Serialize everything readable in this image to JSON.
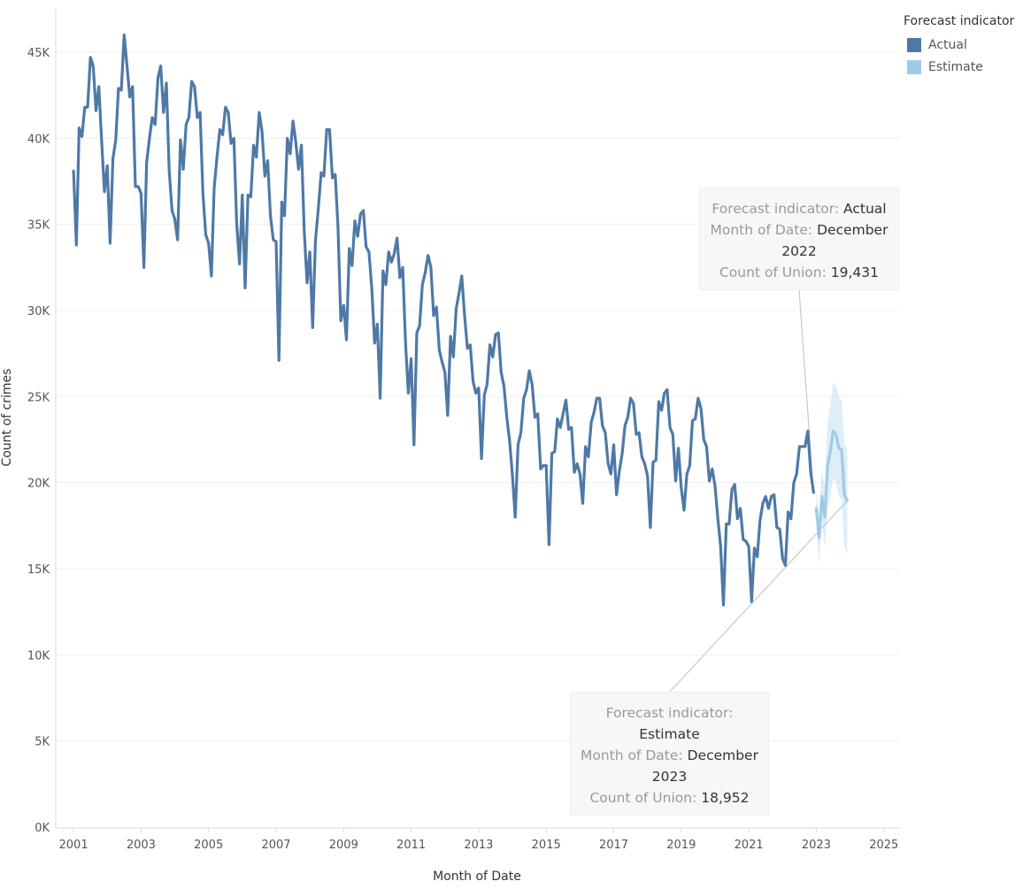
{
  "chart_data": {
    "type": "line",
    "xlabel": "Month of Date",
    "ylabel": "Count of crimes",
    "xlim": [
      2000.5,
      2025.4
    ],
    "ylim": [
      0,
      47000
    ],
    "x_ticks": [
      "2001",
      "2003",
      "2005",
      "2007",
      "2009",
      "2011",
      "2013",
      "2015",
      "2017",
      "2019",
      "2021",
      "2023",
      "2025"
    ],
    "y_ticks": [
      "0K",
      "5K",
      "10K",
      "15K",
      "20K",
      "25K",
      "30K",
      "35K",
      "40K",
      "45K"
    ],
    "grid": "horizontal",
    "legend": {
      "title": "Forecast indicator",
      "position": "top-right",
      "entries": [
        {
          "name": "Actual",
          "color": "#4e79a7"
        },
        {
          "name": "Estimate",
          "color": "#a0cbe8"
        }
      ]
    },
    "series": [
      {
        "name": "Actual",
        "color": "#4e79a7",
        "x_start": "2001-01",
        "x_step": "month",
        "values": [
          38100,
          33800,
          40600,
          40100,
          41800,
          41800,
          44700,
          44200,
          41600,
          43000,
          39800,
          36900,
          38400,
          33900,
          38800,
          39900,
          42900,
          42800,
          46000,
          44200,
          42400,
          43000,
          37200,
          37200,
          36800,
          32500,
          38600,
          40000,
          41200,
          40800,
          43500,
          44200,
          41500,
          43200,
          38100,
          35800,
          35300,
          34100,
          39900,
          38200,
          40800,
          41200,
          43300,
          43000,
          41200,
          41500,
          36800,
          34400,
          33900,
          32000,
          37100,
          38900,
          40500,
          40200,
          41800,
          41500,
          39700,
          40000,
          35000,
          32700,
          36700,
          31300,
          36700,
          36600,
          39600,
          38900,
          41500,
          40400,
          37800,
          38700,
          35500,
          34100,
          34000,
          27100,
          36300,
          35500,
          40000,
          39100,
          41000,
          39800,
          38200,
          39600,
          34600,
          31600,
          33400,
          29000,
          34100,
          35900,
          38000,
          37800,
          40500,
          40500,
          37700,
          37900,
          34900,
          29400,
          30300,
          28300,
          33600,
          32600,
          35200,
          34300,
          35600,
          35800,
          33700,
          33400,
          31300,
          28100,
          29200,
          24900,
          32300,
          31500,
          33400,
          32800,
          33300,
          34200,
          31900,
          32500,
          28200,
          25200,
          27200,
          22200,
          28700,
          29100,
          31500,
          32200,
          33200,
          32500,
          29700,
          30200,
          27700,
          27000,
          26400,
          23900,
          28500,
          27300,
          30100,
          31000,
          32000,
          29700,
          27800,
          28000,
          25900,
          25200,
          25500,
          21400,
          25100,
          25700,
          28000,
          27300,
          28600,
          28700,
          26400,
          25600,
          23800,
          22400,
          20400,
          18000,
          22200,
          22900,
          24900,
          25400,
          26500,
          25700,
          23800,
          24000,
          20800,
          21000,
          21000,
          16400,
          21700,
          21800,
          23700,
          23200,
          24000,
          24800,
          23100,
          23200,
          20600,
          21100,
          20500,
          18800,
          22100,
          21500,
          23500,
          24100,
          24900,
          24900,
          23300,
          22900,
          21100,
          20500,
          22200,
          19300,
          20700,
          21700,
          23300,
          23800,
          24900,
          24600,
          22800,
          22900,
          21500,
          21100,
          20400,
          17400,
          21200,
          21300,
          24700,
          24200,
          25200,
          25400,
          23200,
          22800,
          20100,
          22000,
          19700,
          18400,
          20500,
          21000,
          23600,
          23700,
          24900,
          24300,
          22500,
          22100,
          20100,
          20800,
          19800,
          17900,
          16300,
          12900,
          17600,
          17600,
          19600,
          19900,
          17900,
          18500,
          16700,
          16600,
          16300,
          13100,
          16200,
          15700,
          17800,
          18800,
          19200,
          18500,
          19200,
          19300,
          17400,
          17300,
          15600,
          15200,
          18300,
          17900,
          20000,
          20500,
          22100,
          22100,
          22100,
          23000,
          20600,
          19431
        ]
      },
      {
        "name": "Estimate",
        "color": "#a0cbe8",
        "x_start": "2023-01",
        "x_step": "month",
        "values": [
          18500,
          16800,
          19200,
          18000,
          21000,
          21800,
          23000,
          22800,
          22000,
          21900,
          19300,
          18952
        ],
        "upper": [
          19500,
          18200,
          20600,
          19800,
          23500,
          24500,
          25800,
          25600,
          25000,
          24700,
          22200,
          22000
        ],
        "lower": [
          17500,
          15300,
          17700,
          16200,
          18500,
          19200,
          20300,
          20000,
          19200,
          19000,
          16300,
          15800
        ]
      }
    ],
    "annotations": [
      {
        "lines": [
          {
            "label": "Forecast indicator:",
            "value": "Actual"
          },
          {
            "label": "Month of Date:",
            "value": "December"
          },
          {
            "label": "",
            "value": "2022"
          },
          {
            "label": "Count of Union:",
            "value": "19,431"
          }
        ],
        "target_x": "2022-12",
        "target_y": 19431
      },
      {
        "lines": [
          {
            "label": "Forecast indicator:",
            "value": ""
          },
          {
            "label": "",
            "value": "Estimate"
          },
          {
            "label": "Month of Date:",
            "value": "December"
          },
          {
            "label": "",
            "value": "2023"
          },
          {
            "label": "Count of Union:",
            "value": "18,952"
          }
        ],
        "target_x": "2023-12",
        "target_y": 18952
      }
    ]
  }
}
